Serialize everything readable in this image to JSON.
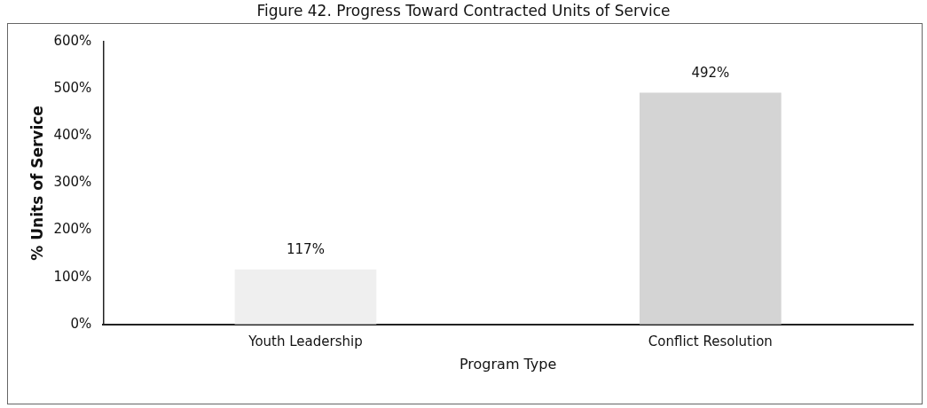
{
  "chart_data": {
    "type": "bar",
    "title": "Figure 42. Progress Toward Contracted Units of Service",
    "xlabel": "Program Type",
    "ylabel": "% Units of Service",
    "categories": [
      "Youth Leadership",
      "Conflict Resolution"
    ],
    "values": [
      117,
      492
    ],
    "colors": [
      "#efefef",
      "#d4d4d4"
    ],
    "value_labels": [
      "117%",
      "492%"
    ],
    "ylim": [
      0,
      600
    ],
    "yticks": [
      {
        "value": 0,
        "label": "0%"
      },
      {
        "value": 100,
        "label": "100%"
      },
      {
        "value": 200,
        "label": "200%"
      },
      {
        "value": 300,
        "label": "300%"
      },
      {
        "value": 400,
        "label": "400%"
      },
      {
        "value": 500,
        "label": "500%"
      },
      {
        "value": 600,
        "label": "600%"
      }
    ],
    "grid": false,
    "legend": false
  }
}
